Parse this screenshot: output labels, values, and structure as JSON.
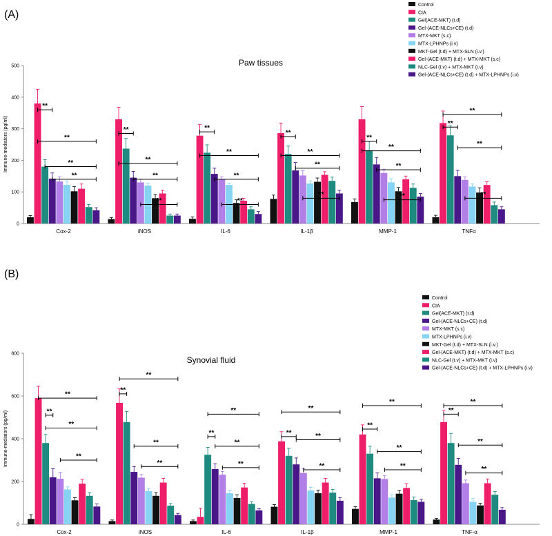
{
  "series_names": [
    "Control",
    "CIA",
    "Gel(ACE-MKT) (t.d)",
    "Gel-(ACE-NLCs+CE) (t.d)",
    "MTX-MKT (s.c)",
    "MTX-LPHNPs (i.v)",
    "MKT-Gel (t.d) + MTX-SLN (i.v.)",
    "Gel-(ACE-MKT) (t.d) + MTX-MKT (s.c)",
    "NLC-Gel (t.v) + MTX-MKT (i.v)",
    "Gel-(ACE-NLCs+CE) (t.d) + MTX-LPHNPs (i.v)"
  ],
  "series_colors": [
    "#111111",
    "#ee1f68",
    "#1f8b80",
    "#4a1789",
    "#b27fe6",
    "#86d3f3",
    "#111111",
    "#ee1f68",
    "#1f8b80",
    "#4a1789"
  ],
  "chart_data": [
    {
      "panel_label": "(A)",
      "type": "bar",
      "title": "Paw tissues",
      "ylabel": "Immune-mediators (pg/ml)",
      "xlabel": "",
      "ylim": [
        0,
        500
      ],
      "yticks": [
        0,
        100,
        200,
        300,
        400,
        500
      ],
      "grid": false,
      "legend": "top-right",
      "significance_label": "**",
      "categories": [
        "Cox-2",
        "iNOS",
        "IL-6",
        "IL-1β",
        "MMP-1",
        "TNF-α"
      ],
      "category_labels": [
        "Cox-2",
        "iNOS",
        "IL-6",
        "IL-1β",
        "MMP-1",
        "TNFα"
      ],
      "series": [
        {
          "name": "Control",
          "values": [
            20,
            14,
            15,
            78,
            68,
            20
          ],
          "errors": [
            5,
            5,
            6,
            12,
            10,
            6
          ]
        },
        {
          "name": "CIA",
          "values": [
            380,
            330,
            278,
            286,
            330,
            318
          ],
          "errors": [
            45,
            38,
            35,
            32,
            40,
            38
          ]
        },
        {
          "name": "Gel(ACE-MKT) (t.d)",
          "values": [
            180,
            237,
            224,
            220,
            232,
            279
          ],
          "errors": [
            22,
            32,
            25,
            25,
            28,
            30
          ]
        },
        {
          "name": "Gel-(ACE-NLCs+CE) (t.d)",
          "values": [
            142,
            145,
            157,
            168,
            187,
            150
          ],
          "errors": [
            18,
            20,
            18,
            25,
            22,
            18
          ]
        },
        {
          "name": "MTX-MKT (s.c)",
          "values": [
            133,
            130,
            140,
            152,
            160,
            138
          ],
          "errors": [
            15,
            10,
            8,
            15,
            12,
            10
          ]
        },
        {
          "name": "MTX-LPHNPs (i.v)",
          "values": [
            122,
            120,
            122,
            127,
            130,
            117
          ],
          "errors": [
            12,
            8,
            5,
            8,
            12,
            8
          ]
        },
        {
          "name": "MKT-Gel (t.d) + MTX-SLN (i.v.)",
          "values": [
            102,
            80,
            65,
            132,
            102,
            98
          ],
          "errors": [
            15,
            12,
            10,
            12,
            12,
            15
          ]
        },
        {
          "name": "Gel-(ACE-MKT) (t.d) + MTX-MKT (s.c)",
          "values": [
            110,
            95,
            72,
            154,
            140,
            122
          ],
          "errors": [
            15,
            10,
            8,
            10,
            10,
            10
          ]
        },
        {
          "name": "NLC-Gel (t.v) + MTX-MKT (i.v)",
          "values": [
            52,
            25,
            45,
            135,
            113,
            58
          ],
          "errors": [
            8,
            5,
            8,
            12,
            12,
            10
          ]
        },
        {
          "name": "Gel-(ACE-NLCs+CE) (t.d) + MTX-LPHNPs (i.v)",
          "values": [
            42,
            25,
            30,
            95,
            85,
            45
          ],
          "errors": [
            8,
            5,
            8,
            10,
            10,
            8
          ]
        }
      ],
      "significance": [
        {
          "category": 0,
          "from_series": 1,
          "to_series": 3,
          "y": 360
        },
        {
          "category": 0,
          "from_series": 1,
          "to_series": 9,
          "y": 260
        },
        {
          "category": 0,
          "from_series": 2,
          "to_series": 9,
          "y": 180
        },
        {
          "category": 0,
          "from_series": 3,
          "to_series": 9,
          "y": 140
        },
        {
          "category": 1,
          "from_series": 1,
          "to_series": 3,
          "y": 285
        },
        {
          "category": 1,
          "from_series": 1,
          "to_series": 9,
          "y": 190
        },
        {
          "category": 1,
          "from_series": 3,
          "to_series": 9,
          "y": 140
        },
        {
          "category": 1,
          "from_series": 4,
          "to_series": 9,
          "y": 60
        },
        {
          "category": 2,
          "from_series": 1,
          "to_series": 3,
          "y": 290
        },
        {
          "category": 2,
          "from_series": 1,
          "to_series": 9,
          "y": 215
        },
        {
          "category": 2,
          "from_series": 3,
          "to_series": 9,
          "y": 140
        },
        {
          "category": 2,
          "from_series": 4,
          "to_series": 9,
          "y": 60
        },
        {
          "category": 3,
          "from_series": 1,
          "to_series": 3,
          "y": 275
        },
        {
          "category": 3,
          "from_series": 1,
          "to_series": 9,
          "y": 215
        },
        {
          "category": 3,
          "from_series": 3,
          "to_series": 9,
          "y": 175
        },
        {
          "category": 3,
          "from_series": 4,
          "to_series": 9,
          "y": 80
        },
        {
          "category": 4,
          "from_series": 1,
          "to_series": 3,
          "y": 260
        },
        {
          "category": 4,
          "from_series": 1,
          "to_series": 9,
          "y": 230
        },
        {
          "category": 4,
          "from_series": 3,
          "to_series": 9,
          "y": 170
        },
        {
          "category": 4,
          "from_series": 4,
          "to_series": 9,
          "y": 75
        },
        {
          "category": 5,
          "from_series": 1,
          "to_series": 3,
          "y": 305
        },
        {
          "category": 5,
          "from_series": 1,
          "to_series": 9,
          "y": 345
        },
        {
          "category": 5,
          "from_series": 3,
          "to_series": 9,
          "y": 240
        },
        {
          "category": 5,
          "from_series": 4,
          "to_series": 9,
          "y": 80
        }
      ]
    },
    {
      "panel_label": "(B)",
      "type": "bar",
      "title": "Synovial fluid",
      "ylabel": "Immune-mediators (pg/ml)",
      "xlabel": "",
      "ylim": [
        0,
        800
      ],
      "yticks": [
        0,
        200,
        400,
        600,
        800
      ],
      "grid": false,
      "legend": "top-right",
      "significance_label": "**",
      "categories": [
        "Cox-2",
        "iNOS",
        "IL-6",
        "IL-1β",
        "MMP-1",
        "TNF-α"
      ],
      "category_labels": [
        "Cox-2",
        "iNOS",
        "IL-6",
        "IL-1β",
        "MMP-1",
        "TNF-α"
      ],
      "series": [
        {
          "name": "Control",
          "values": [
            25,
            15,
            15,
            82,
            72,
            22
          ],
          "errors": [
            20,
            5,
            5,
            10,
            10,
            5
          ]
        },
        {
          "name": "CIA",
          "values": [
            590,
            568,
            35,
            388,
            420,
            478
          ],
          "errors": [
            55,
            65,
            40,
            45,
            45,
            55
          ]
        },
        {
          "name": "Gel(ACE-MKT) (t.d)",
          "values": [
            380,
            478,
            325,
            320,
            330,
            380
          ],
          "errors": [
            40,
            50,
            35,
            35,
            35,
            45
          ]
        },
        {
          "name": "Gel-(ACE-NLCs+CE) (t.d)",
          "values": [
            220,
            245,
            258,
            280,
            215,
            278
          ],
          "errors": [
            40,
            25,
            25,
            30,
            25,
            30
          ]
        },
        {
          "name": "MTX-MKT (s.c)",
          "values": [
            213,
            218,
            232,
            240,
            212,
            192
          ],
          "errors": [
            30,
            15,
            15,
            20,
            15,
            15
          ]
        },
        {
          "name": "MTX-LPHNPs (i.v)",
          "values": [
            163,
            155,
            145,
            158,
            125,
            105
          ],
          "errors": [
            12,
            12,
            12,
            15,
            12,
            15
          ]
        },
        {
          "name": "MKT-Gel (t.d) + MTX-SLN (i.v.)",
          "values": [
            112,
            133,
            123,
            145,
            143,
            88
          ],
          "errors": [
            12,
            15,
            15,
            15,
            15,
            10
          ]
        },
        {
          "name": "Gel-(ACE-MKT) (t.d) + MTX-MKT (s.c)",
          "values": [
            190,
            195,
            172,
            195,
            170,
            192
          ],
          "errors": [
            20,
            20,
            20,
            20,
            20,
            20
          ]
        },
        {
          "name": "NLC-Gel (t.v) + MTX-MKT (i.v)",
          "values": [
            133,
            87,
            95,
            148,
            113,
            138
          ],
          "errors": [
            15,
            10,
            10,
            15,
            15,
            15
          ]
        },
        {
          "name": "Gel-(ACE-NLCs+CE) (t.d) + MTX-LPHNPs (i.v)",
          "values": [
            83,
            43,
            65,
            110,
            105,
            68
          ],
          "errors": [
            12,
            8,
            8,
            15,
            12,
            10
          ]
        }
      ],
      "significance": [
        {
          "category": 0,
          "from_series": 1,
          "to_series": 9,
          "y": 590
        },
        {
          "category": 0,
          "from_series": 2,
          "to_series": 3,
          "y": 510
        },
        {
          "category": 0,
          "from_series": 2,
          "to_series": 9,
          "y": 450
        },
        {
          "category": 0,
          "from_series": 4,
          "to_series": 9,
          "y": 300
        },
        {
          "category": 1,
          "from_series": 1,
          "to_series": 2,
          "y": 610
        },
        {
          "category": 1,
          "from_series": 1,
          "to_series": 9,
          "y": 680
        },
        {
          "category": 1,
          "from_series": 3,
          "to_series": 9,
          "y": 365
        },
        {
          "category": 1,
          "from_series": 4,
          "to_series": 9,
          "y": 270
        },
        {
          "category": 2,
          "from_series": 2,
          "to_series": 3,
          "y": 410
        },
        {
          "category": 2,
          "from_series": 2,
          "to_series": 9,
          "y": 515
        },
        {
          "category": 2,
          "from_series": 3,
          "to_series": 9,
          "y": 365
        },
        {
          "category": 2,
          "from_series": 4,
          "to_series": 9,
          "y": 265
        },
        {
          "category": 3,
          "from_series": 1,
          "to_series": 3,
          "y": 410
        },
        {
          "category": 3,
          "from_series": 1,
          "to_series": 9,
          "y": 525
        },
        {
          "category": 3,
          "from_series": 3,
          "to_series": 9,
          "y": 395
        },
        {
          "category": 3,
          "from_series": 4,
          "to_series": 9,
          "y": 255
        },
        {
          "category": 4,
          "from_series": 1,
          "to_series": 3,
          "y": 445
        },
        {
          "category": 4,
          "from_series": 1,
          "to_series": 9,
          "y": 555
        },
        {
          "category": 4,
          "from_series": 3,
          "to_series": 9,
          "y": 340
        },
        {
          "category": 4,
          "from_series": 4,
          "to_series": 9,
          "y": 255
        },
        {
          "category": 5,
          "from_series": 1,
          "to_series": 3,
          "y": 515
        },
        {
          "category": 5,
          "from_series": 1,
          "to_series": 9,
          "y": 555
        },
        {
          "category": 5,
          "from_series": 3,
          "to_series": 9,
          "y": 370
        },
        {
          "category": 5,
          "from_series": 4,
          "to_series": 9,
          "y": 240
        }
      ]
    }
  ]
}
